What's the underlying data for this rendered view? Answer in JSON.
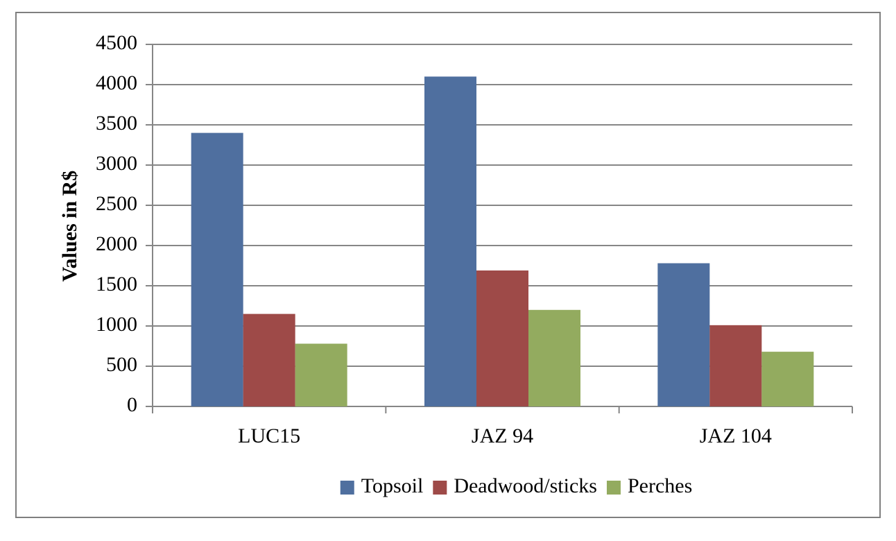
{
  "chart_data": {
    "type": "bar",
    "title": "",
    "xlabel": "",
    "ylabel": "Values in R$",
    "categories": [
      "LUC15",
      "JAZ 94",
      "JAZ 104"
    ],
    "series": [
      {
        "name": "Topsoil",
        "color": "#4f6f9f",
        "values": [
          3400,
          4100,
          1780
        ]
      },
      {
        "name": "Deadwood/sticks",
        "color": "#9e4a48",
        "values": [
          1150,
          1690,
          1010
        ]
      },
      {
        "name": "Perches",
        "color": "#93ab5f",
        "values": [
          780,
          1200,
          680
        ]
      }
    ],
    "ylim": [
      0,
      4500
    ],
    "yticks": [
      0,
      500,
      1000,
      1500,
      2000,
      2500,
      3000,
      3500,
      4000,
      4500
    ],
    "grid": true,
    "legend_position": "bottom"
  }
}
